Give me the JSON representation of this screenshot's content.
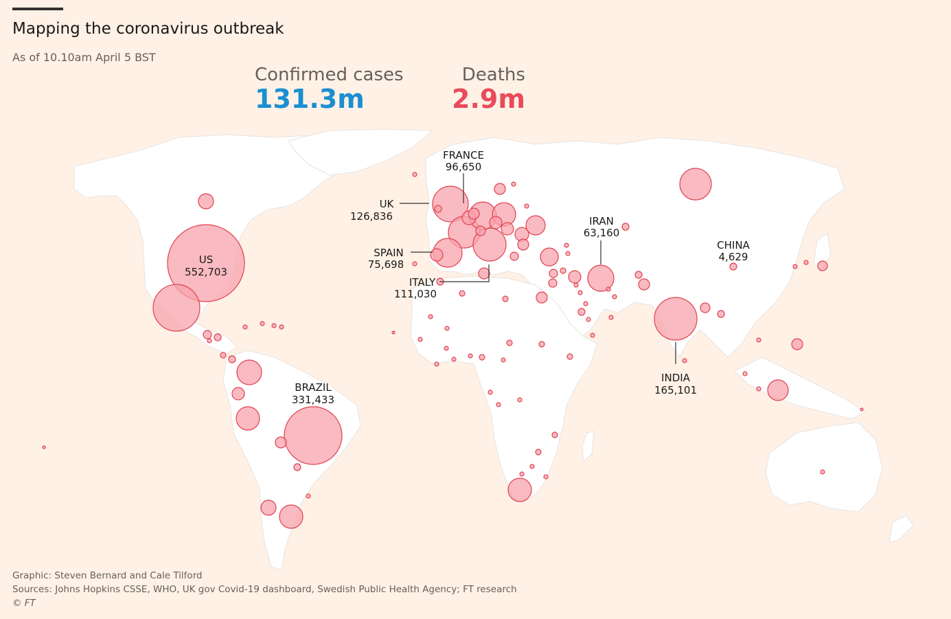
{
  "header": {
    "title": "Mapping the coronavirus outbreak",
    "subtitle": "As of 10.10am April 5 BST"
  },
  "stats": {
    "cases_label": "Confirmed cases",
    "cases_value": "131.3m",
    "deaths_label": "Deaths",
    "deaths_value": "2.9m"
  },
  "colors": {
    "background": "#fff1e6",
    "land": "#ffffff",
    "bubble_fill": "#f7a3ac",
    "bubble_stroke": "#e0404f",
    "cases_color": "#1a8fd1",
    "deaths_color": "#e94b5b"
  },
  "labels": {
    "us": {
      "name": "US",
      "value": "552,703"
    },
    "brazil": {
      "name": "BRAZIL",
      "value": "331,433"
    },
    "uk": {
      "name": "UK",
      "value": "126,836"
    },
    "france": {
      "name": "FRANCE",
      "value": "96,650"
    },
    "spain": {
      "name": "SPAIN",
      "value": "75,698"
    },
    "italy": {
      "name": "ITALY",
      "value": "111,030"
    },
    "iran": {
      "name": "IRAN",
      "value": "63,160"
    },
    "china": {
      "name": "CHINA",
      "value": "4,629"
    },
    "india": {
      "name": "INDIA",
      "value": "165,101"
    }
  },
  "footer": {
    "credit": "Graphic: Steven Bernard and Cale Tilford",
    "sources": "Sources: Johns Hopkins CSSE, WHO, UK gov Covid-19 dashboard, Swedish Public Health Agency; FT research",
    "copyright": "© FT"
  }
}
